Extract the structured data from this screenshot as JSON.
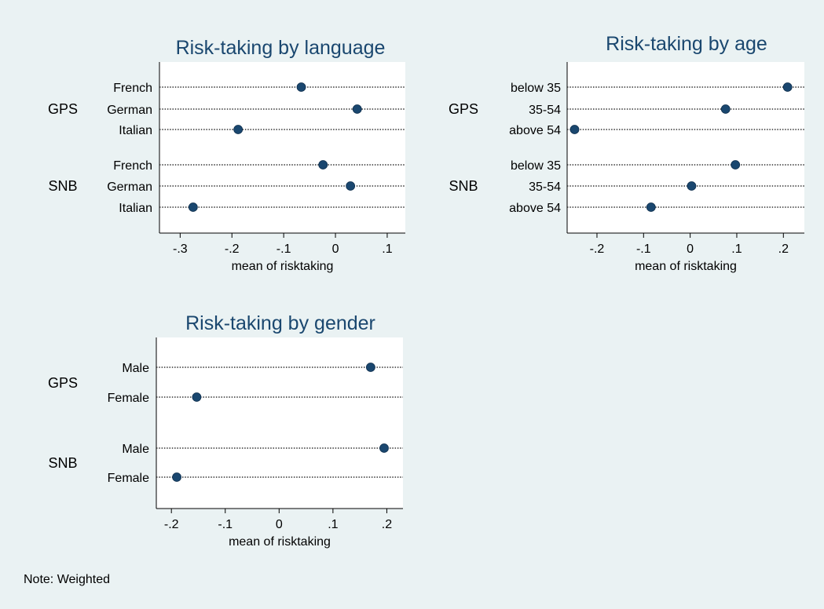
{
  "colors": {
    "background": "#eaf2f3",
    "plot_area": "#ffffff",
    "marker": "#1a476f",
    "title": "#1a476f"
  },
  "note": "Note: Weighted",
  "chart_data": [
    {
      "type": "dot",
      "title": "Risk-taking by language",
      "xlabel": "mean of risktaking",
      "xlim": [
        -0.34,
        0.135
      ],
      "xticks": [
        -0.3,
        -0.2,
        -0.1,
        0,
        0.1
      ],
      "xtick_labels": [
        "-.3",
        "-.2",
        "-.1",
        "0",
        ".1"
      ],
      "grid": false,
      "groups": [
        {
          "name": "GPS",
          "categories": [
            "French",
            "German",
            "Italian"
          ],
          "values": [
            -0.066,
            0.042,
            -0.188
          ]
        },
        {
          "name": "SNB",
          "categories": [
            "French",
            "German",
            "Italian"
          ],
          "values": [
            -0.024,
            0.029,
            -0.275
          ]
        }
      ]
    },
    {
      "type": "dot",
      "title": "Risk-taking by age",
      "xlabel": "mean of risktaking",
      "xlim": [
        -0.264,
        0.245
      ],
      "xticks": [
        -0.2,
        -0.1,
        0,
        0.1,
        0.2
      ],
      "xtick_labels": [
        "-.2",
        "-.1",
        "0",
        ".1",
        ".2"
      ],
      "grid": false,
      "groups": [
        {
          "name": "GPS",
          "categories": [
            "below 35",
            "35-54",
            "above 54"
          ],
          "values": [
            0.209,
            0.076,
            -0.248
          ]
        },
        {
          "name": "SNB",
          "categories": [
            "below 35",
            "35-54",
            "above 54"
          ],
          "values": [
            0.097,
            0.003,
            -0.084
          ]
        }
      ]
    },
    {
      "type": "dot",
      "title": "Risk-taking by gender",
      "xlabel": "mean of risktaking",
      "xlim": [
        -0.228,
        0.23
      ],
      "xticks": [
        -0.2,
        -0.1,
        0,
        0.1,
        0.2
      ],
      "xtick_labels": [
        "-.2",
        "-.1",
        "0",
        ".1",
        ".2"
      ],
      "grid": false,
      "groups": [
        {
          "name": "GPS",
          "categories": [
            "Male",
            "Female"
          ],
          "values": [
            0.17,
            -0.153
          ]
        },
        {
          "name": "SNB",
          "categories": [
            "Male",
            "Female"
          ],
          "values": [
            0.195,
            -0.19
          ]
        }
      ]
    }
  ]
}
